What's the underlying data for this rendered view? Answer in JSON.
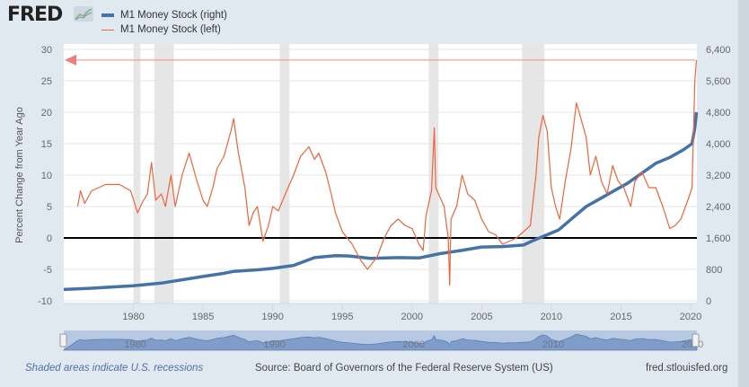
{
  "header": {
    "logo_text": "FRED",
    "logo_icon": "chart-line-icon"
  },
  "legend": [
    {
      "label": "M1 Money Stock (right)",
      "color": "#4572a7"
    },
    {
      "label": "M1 Money Stock (left)",
      "color": "#f0643c"
    }
  ],
  "footer": {
    "recession_note": "Shaded areas indicate U.S. recessions",
    "source": "Source: Board of Governors of the Federal Reserve System (US)",
    "site": "fred.stlouisfed.org"
  },
  "navigator": {
    "labels": [
      "1980",
      "1990",
      "2000",
      "2010",
      "2020"
    ]
  },
  "chart_data": {
    "type": "line",
    "title": "",
    "xlabel": "",
    "xlim": [
      1975.0,
      2020.45
    ],
    "x_ticks": [
      "1980",
      "1985",
      "1990",
      "1995",
      "2000",
      "2005",
      "2010",
      "2015",
      "2020"
    ],
    "y_left": {
      "label": "Percent Change from Year Ago",
      "range": [
        -10,
        30
      ],
      "ticks": [
        "30",
        "25",
        "20",
        "15",
        "10",
        "5",
        "0",
        "-5",
        "-10"
      ]
    },
    "y_right": {
      "label": "Billions of Dollars",
      "range": [
        0,
        6400
      ],
      "ticks": [
        "6,400",
        "5,600",
        "4,800",
        "4,000",
        "3,200",
        "2,400",
        "1,600",
        "800",
        "0"
      ]
    },
    "grid": true,
    "recessions": [
      [
        1980.0,
        1980.5
      ],
      [
        1981.5,
        1982.9
      ],
      [
        1990.5,
        1991.2
      ],
      [
        2001.2,
        2001.9
      ],
      [
        2007.9,
        2009.5
      ]
    ],
    "series": [
      {
        "name": "M1 Money Stock (right)",
        "axis": "right",
        "color": "#4572a7",
        "x": [
          1975.0,
          1977,
          1980,
          1982,
          1985,
          1986.5,
          1987.2,
          1989,
          1990,
          1991.5,
          1993,
          1994.5,
          1995.5,
          1997,
          1999,
          2000.5,
          2002,
          2003.5,
          2005,
          2006.5,
          2008,
          2008.8,
          2009.5,
          2010.5,
          2011.5,
          2012.5,
          2013.5,
          2014.5,
          2015.5,
          2016.5,
          2017.5,
          2018.5,
          2019.5,
          2020.1,
          2020.3,
          2020.42
        ],
        "values": [
          287,
          320,
          385,
          450,
          620,
          700,
          750,
          790,
          825,
          900,
          1100,
          1150,
          1140,
          1080,
          1100,
          1090,
          1200,
          1280,
          1370,
          1380,
          1420,
          1550,
          1650,
          1800,
          2100,
          2400,
          2600,
          2800,
          3000,
          3250,
          3500,
          3650,
          3850,
          4000,
          4400,
          4800
        ]
      },
      {
        "name": "M1 Money Stock (left)",
        "axis": "left",
        "color": "#f0643c",
        "x": [
          1976.0,
          1976.2,
          1976.5,
          1977,
          1978,
          1979,
          1979.8,
          1980.3,
          1980.6,
          1981,
          1981.3,
          1981.6,
          1982,
          1982.3,
          1982.7,
          1983,
          1983.5,
          1984,
          1984.5,
          1985,
          1985.3,
          1985.7,
          1986,
          1986.5,
          1987.0,
          1987.2,
          1987.5,
          1988,
          1988.3,
          1988.6,
          1988.9,
          1989.3,
          1989.7,
          1990,
          1990.4,
          1991,
          1991.5,
          1992,
          1992.6,
          1993,
          1993.3,
          1993.8,
          1994.2,
          1994.5,
          1995,
          1995.7,
          1996.3,
          1996.8,
          1997.5,
          1998,
          1998.5,
          1999,
          1999.5,
          2000,
          2000.5,
          2000.8,
          2001.0,
          2001.4,
          2001.6,
          2001.7,
          2002,
          2002.3,
          2002.6,
          2002.7,
          2002.8,
          2003.2,
          2003.6,
          2004,
          2004.5,
          2005,
          2005.5,
          2006,
          2006.5,
          2007,
          2007.5,
          2008,
          2008.5,
          2008.9,
          2009.1,
          2009.4,
          2009.7,
          2010,
          2010.3,
          2010.6,
          2011,
          2011.4,
          2011.8,
          2012,
          2012.5,
          2012.8,
          2013.2,
          2013.6,
          2014,
          2014.4,
          2014.8,
          2015.2,
          2015.7,
          2016,
          2016.5,
          2017,
          2017.5,
          2018,
          2018.5,
          2018.9,
          2019.3,
          2019.8,
          2020.1,
          2020.3,
          2020.42
        ],
        "values": [
          5.0,
          7.5,
          5.5,
          7.5,
          8.5,
          8.5,
          7.5,
          4.0,
          5.5,
          7,
          12,
          6,
          7,
          5,
          10,
          5,
          10,
          13.5,
          9.5,
          6,
          5,
          8,
          11,
          13,
          17,
          19,
          14,
          8,
          2,
          4,
          5,
          -0.5,
          2,
          5,
          4.3,
          7.5,
          10,
          13,
          14.5,
          12.5,
          13.5,
          10.5,
          7,
          4,
          1,
          -1,
          -3.5,
          -5,
          -3,
          0,
          2,
          3,
          2,
          1.5,
          -1,
          -2,
          3.5,
          7.5,
          17.5,
          8,
          6.5,
          5,
          0,
          -7.5,
          3,
          5,
          10,
          7,
          6,
          3,
          1,
          0.5,
          -1,
          -0.5,
          0,
          1,
          2,
          10,
          16,
          19.5,
          17,
          8,
          5,
          3,
          9,
          14,
          21.5,
          20,
          16,
          10,
          13,
          9,
          7,
          11.5,
          9,
          8,
          5,
          9,
          10.5,
          8,
          8,
          5,
          1.5,
          2,
          3,
          6,
          8,
          25,
          28.3
        ]
      }
    ],
    "reference_line": {
      "axis": "left",
      "value": 0,
      "color": "#000000"
    },
    "latest_marker": {
      "axis": "left",
      "value": 28.3,
      "color": "#f0643c",
      "shape": "arrow-left"
    }
  }
}
